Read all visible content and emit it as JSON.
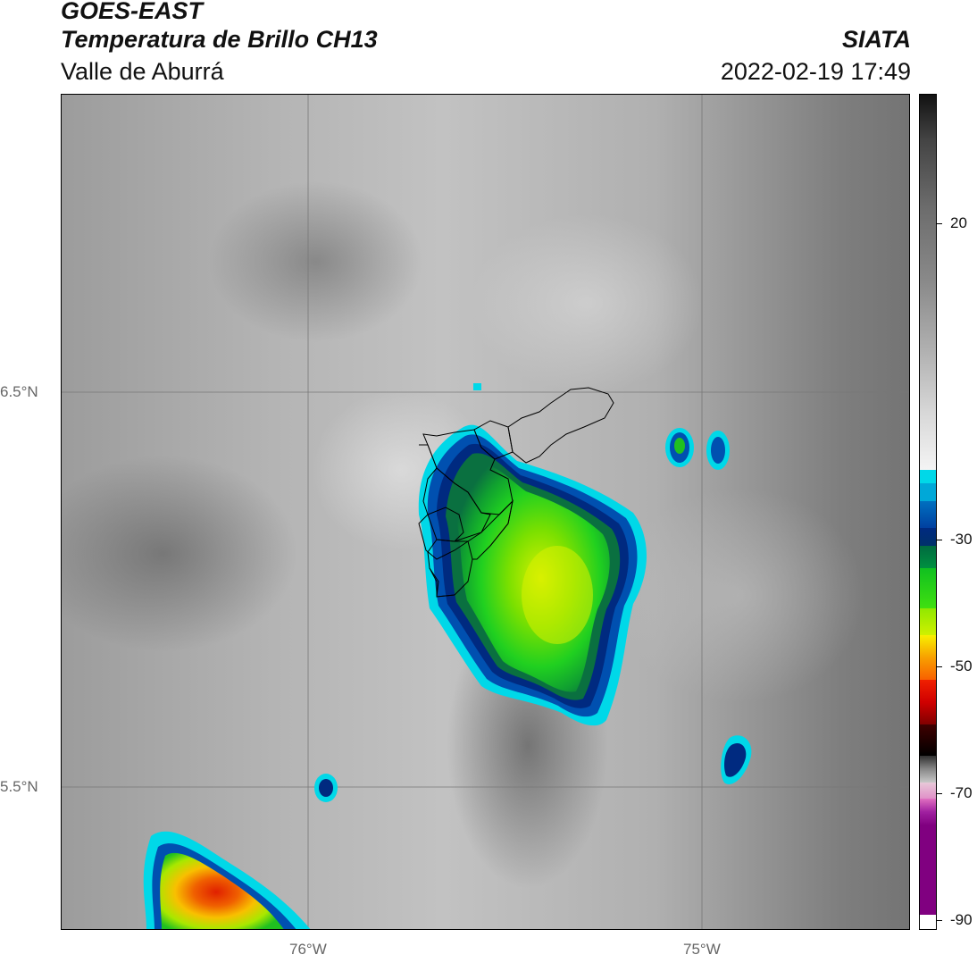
{
  "header": {
    "satellite": "GOES-EAST",
    "product": "Temperatura de Brillo CH13",
    "region": "Valle de Aburrá",
    "source": "SIATA",
    "datetime": "2022-02-19 17:49"
  },
  "map": {
    "lat_labels": [
      "6.5°N",
      "5.5°N"
    ],
    "lon_labels": [
      "76°W",
      "75°W"
    ]
  },
  "colorbar": {
    "ticks": [
      "20",
      "-30",
      "-50",
      "-70",
      "-90"
    ],
    "colors": {
      "warm_top": "#111111",
      "gray_mid": "#888888",
      "light": "#f2f2f2",
      "cyan": "#00d8e8",
      "blue": "#0050b0",
      "navy": "#002a80",
      "dark_green": "#006a40",
      "green": "#20d020",
      "lime": "#b8f000",
      "yellow": "#f8f000",
      "orange": "#f88800",
      "red": "#e00000",
      "dark_red": "#500000",
      "black": "#000000",
      "pink": "#e070c0",
      "purple": "#900090"
    }
  }
}
